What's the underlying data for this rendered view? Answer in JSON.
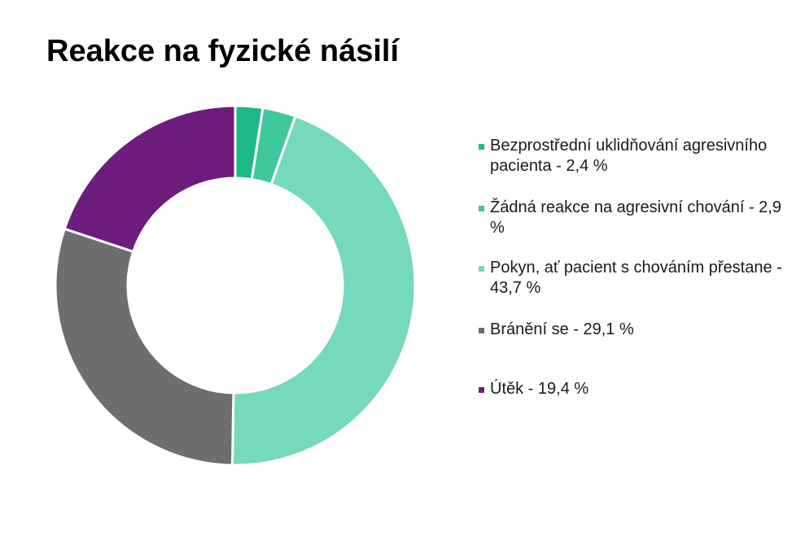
{
  "chart_data": {
    "type": "pie",
    "variant": "donut",
    "title": "Reakce na fyzické násilí",
    "legend_position": "right",
    "slices": [
      {
        "label": "Bezprostřední uklidňování agresivního pacienta - 2,4 %",
        "value": 2.4,
        "color": "#1bb98a"
      },
      {
        "label": "Žádná reakce na agresivní chování - 2,9 %",
        "value": 2.9,
        "color": "#40c89d"
      },
      {
        "label": "Pokyn, ať pacient s chováním přestane - 43,7 %",
        "value": 43.7,
        "color": "#76d8bd"
      },
      {
        "label": "Bránění se - 29,1 %",
        "value": 29.1,
        "color": "#6e6e6e"
      },
      {
        "label": "Útěk - 19,4 %",
        "value": 19.4,
        "color": "#6c1d7e"
      }
    ]
  }
}
